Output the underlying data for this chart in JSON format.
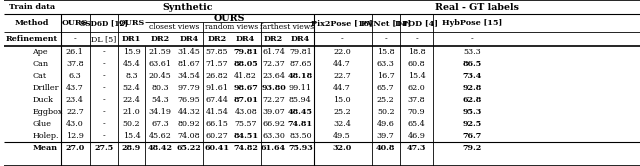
{
  "objects": [
    "Ape",
    "Can",
    "Cat",
    "Driller",
    "Duck",
    "Eggbox",
    "Glue",
    "Holep.",
    "Mean"
  ],
  "col_OURS_no_ref": [
    "26.1",
    "37.8",
    "6.3",
    "43.7",
    "23.4",
    "22.7",
    "43.0",
    "12.9",
    "27.0"
  ],
  "col_SSD6D": [
    "-",
    "-",
    "-",
    "-",
    "-",
    "-",
    "-",
    "-",
    "27.5"
  ],
  "col_OURS_DR1": [
    "15.9",
    "45.4",
    "8.3",
    "52.4",
    "22.4",
    "21.0",
    "50.2",
    "15.4",
    "28.9"
  ],
  "col_closest_DR2": [
    "21.59",
    "63.61",
    "20.45",
    "80.3",
    "54.3",
    "34.19",
    "67.3",
    "45.62",
    "48.42"
  ],
  "col_closest_DR4": [
    "31.45",
    "81.67",
    "34.54",
    "97.79",
    "76.95",
    "44.32",
    "80.92",
    "74.08",
    "65.22"
  ],
  "col_random_DR2": [
    "57.85",
    "71.57",
    "26.82",
    "91.61",
    "67.44",
    "41.54",
    "66.15",
    "60.27",
    "60.41"
  ],
  "col_random_DR4": [
    "79.81",
    "88.05",
    "41.82",
    "98.67",
    "87.01",
    "43.08",
    "75.57",
    "84.51",
    "74.82"
  ],
  "col_farthest_DR2": [
    "61.74",
    "72.37",
    "23.64",
    "93.80",
    "72.27",
    "39.07",
    "66.92",
    "63.30",
    "61.64"
  ],
  "col_farthest_DR4": [
    "79.81",
    "87.65",
    "48.18",
    "99.11",
    "85.94",
    "48.45",
    "74.81",
    "83.50",
    "75.93"
  ],
  "col_Pix2Pose": [
    "22.0",
    "44.7",
    "22.7",
    "44.7",
    "15.0",
    "25.2",
    "32.4",
    "49.5",
    "32.0"
  ],
  "col_PVNet": [
    "15.8",
    "63.3",
    "16.7",
    "65.7",
    "25.2",
    "50.2",
    "49.6",
    "39.7",
    "40.8"
  ],
  "col_DPOD": [
    "18.8",
    "60.8",
    "15.4",
    "62.0",
    "37.8",
    "70.9",
    "65.4",
    "46.9",
    "47.3"
  ],
  "col_HybPose": [
    "53.3",
    "86.5",
    "73.4",
    "92.8",
    "62.8",
    "95.3",
    "92.5",
    "76.7",
    "79.2"
  ],
  "bold_rv4": [
    0,
    1,
    3,
    4,
    7
  ],
  "bold_fv4": [
    2,
    5,
    6,
    8
  ],
  "bold_fv2": [
    3
  ],
  "bold_hyb": [
    1,
    2,
    3,
    4,
    5,
    6,
    7,
    8
  ],
  "bg_color": "#ffffff",
  "font_size": 5.8
}
